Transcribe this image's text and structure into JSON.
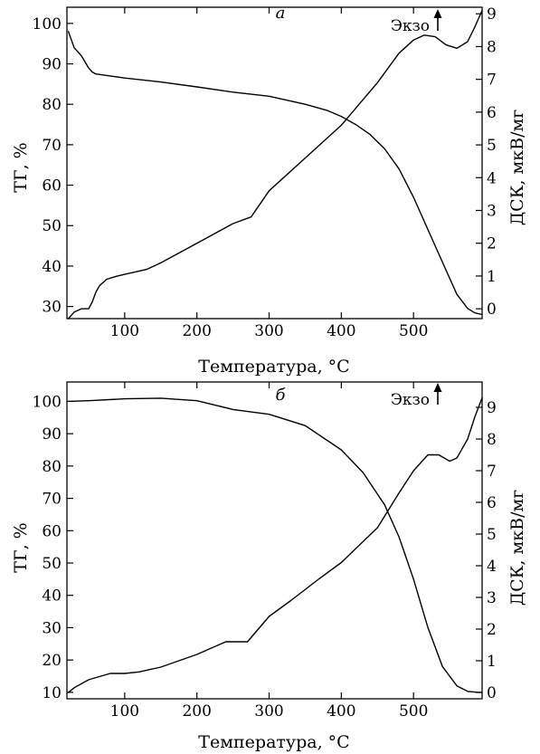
{
  "chart_data": [
    {
      "type": "line",
      "panel_label": "а",
      "exo_label": "Экзо",
      "xlabel": "Температура, °C",
      "ylabel_left": "ТГ, %",
      "ylabel_right": "ДСК, мкВ/мг",
      "xlim": [
        20,
        595
      ],
      "ylim_left": [
        27,
        104
      ],
      "ylim_right": [
        -0.3,
        9.2
      ],
      "x_ticks": [
        100,
        200,
        300,
        400,
        500
      ],
      "y_ticks_left": [
        30,
        40,
        50,
        60,
        70,
        80,
        90,
        100
      ],
      "y_ticks_right": [
        0,
        1,
        2,
        3,
        4,
        5,
        6,
        7,
        8,
        9
      ],
      "series": [
        {
          "name": "ТГ",
          "axis": "left",
          "x": [
            22,
            30,
            40,
            50,
            55,
            60,
            80,
            100,
            150,
            200,
            250,
            300,
            350,
            380,
            400,
            420,
            440,
            460,
            480,
            500,
            520,
            540,
            560,
            575,
            585,
            595
          ],
          "y": [
            98,
            94,
            92,
            89,
            88,
            87.5,
            87,
            86.5,
            85.5,
            84.3,
            83,
            82,
            80,
            78.5,
            77,
            75,
            72.5,
            69,
            64,
            57,
            49,
            41,
            33,
            29.5,
            28.4,
            28
          ]
        },
        {
          "name": "ДСК",
          "axis": "right",
          "x": [
            22,
            30,
            40,
            50,
            55,
            60,
            65,
            75,
            90,
            100,
            130,
            150,
            200,
            250,
            275,
            300,
            350,
            400,
            450,
            480,
            500,
            515,
            530,
            545,
            560,
            575,
            585,
            595
          ],
          "y": [
            -0.3,
            -0.1,
            0,
            0,
            0.2,
            0.5,
            0.7,
            0.9,
            1.0,
            1.05,
            1.2,
            1.4,
            2.0,
            2.6,
            2.8,
            3.6,
            4.6,
            5.6,
            6.9,
            7.8,
            8.2,
            8.35,
            8.3,
            8.05,
            7.95,
            8.15,
            8.6,
            9.1
          ]
        }
      ]
    },
    {
      "type": "line",
      "panel_label": "б",
      "exo_label": "Экзо",
      "xlabel": "Температура, °C",
      "ylabel_left": "ТГ, %",
      "ylabel_right": "ДСК, мкВ/мг",
      "xlim": [
        20,
        595
      ],
      "ylim_left": [
        8,
        106
      ],
      "ylim_right": [
        -0.2,
        9.8
      ],
      "x_ticks": [
        100,
        200,
        300,
        400,
        500
      ],
      "y_ticks_left": [
        10,
        20,
        30,
        40,
        50,
        60,
        70,
        80,
        90,
        100
      ],
      "y_ticks_right": [
        0,
        1,
        2,
        3,
        4,
        5,
        6,
        7,
        8,
        9
      ],
      "series": [
        {
          "name": "ТГ",
          "axis": "left",
          "x": [
            22,
            50,
            100,
            150,
            200,
            250,
            300,
            350,
            400,
            430,
            460,
            480,
            500,
            520,
            540,
            560,
            575,
            590,
            595
          ],
          "y": [
            100,
            100.2,
            100.8,
            101,
            100.2,
            97.5,
            96,
            92.5,
            85,
            78,
            68,
            58,
            45,
            30,
            18,
            12,
            10.3,
            10,
            10
          ]
        },
        {
          "name": "ДСК",
          "axis": "right",
          "x": [
            22,
            30,
            50,
            80,
            100,
            120,
            150,
            200,
            240,
            250,
            270,
            300,
            330,
            370,
            400,
            450,
            480,
            500,
            520,
            535,
            550,
            560,
            575,
            585,
            595
          ],
          "y": [
            0,
            0.15,
            0.4,
            0.6,
            0.6,
            0.65,
            0.8,
            1.2,
            1.6,
            1.6,
            1.6,
            2.4,
            2.9,
            3.6,
            4.1,
            5.2,
            6.3,
            7.0,
            7.5,
            7.5,
            7.3,
            7.4,
            8.0,
            8.7,
            9.3
          ]
        }
      ]
    }
  ]
}
